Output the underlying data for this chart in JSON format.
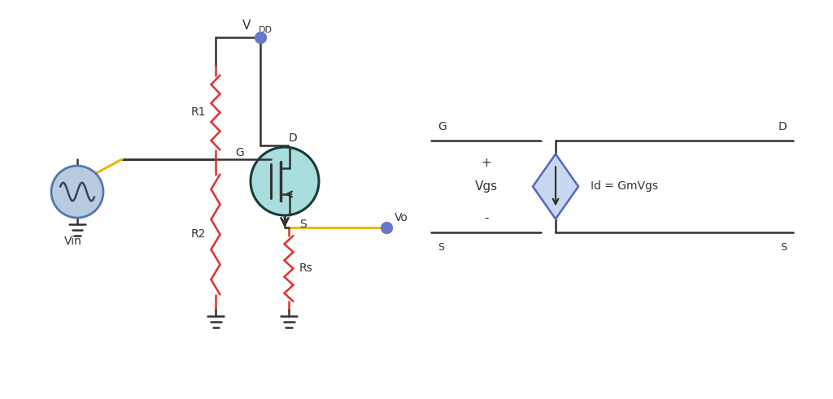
{
  "bg_color": "#ffffff",
  "line_color": "#333333",
  "red_color": "#e03030",
  "yellow_color": "#e8b800",
  "blue_dot_color": "#6677cc",
  "mosfet_fill": "#aadddd",
  "mosfet_edge": "#1a3a3a",
  "vin_fill": "#b8cce0",
  "vin_edge": "#5577aa",
  "diamond_fill": "#c8d8f0",
  "diamond_edge": "#5566bb",
  "labels": {
    "VDD": "VDD",
    "R1": "R1",
    "R2": "R2",
    "Rs": "Rs",
    "Vin": "Vin",
    "Vo": "Vo",
    "D": "D",
    "G": "G",
    "S": "S",
    "G_ss": "G",
    "S_ss_left": "S",
    "D_ss": "D",
    "S_ss_right": "S",
    "plus": "+",
    "minus": "-",
    "Vgs": "Vgs",
    "Id": "Id = GmVgs"
  },
  "figsize": [
    10.24,
    4.91
  ],
  "dpi": 100
}
